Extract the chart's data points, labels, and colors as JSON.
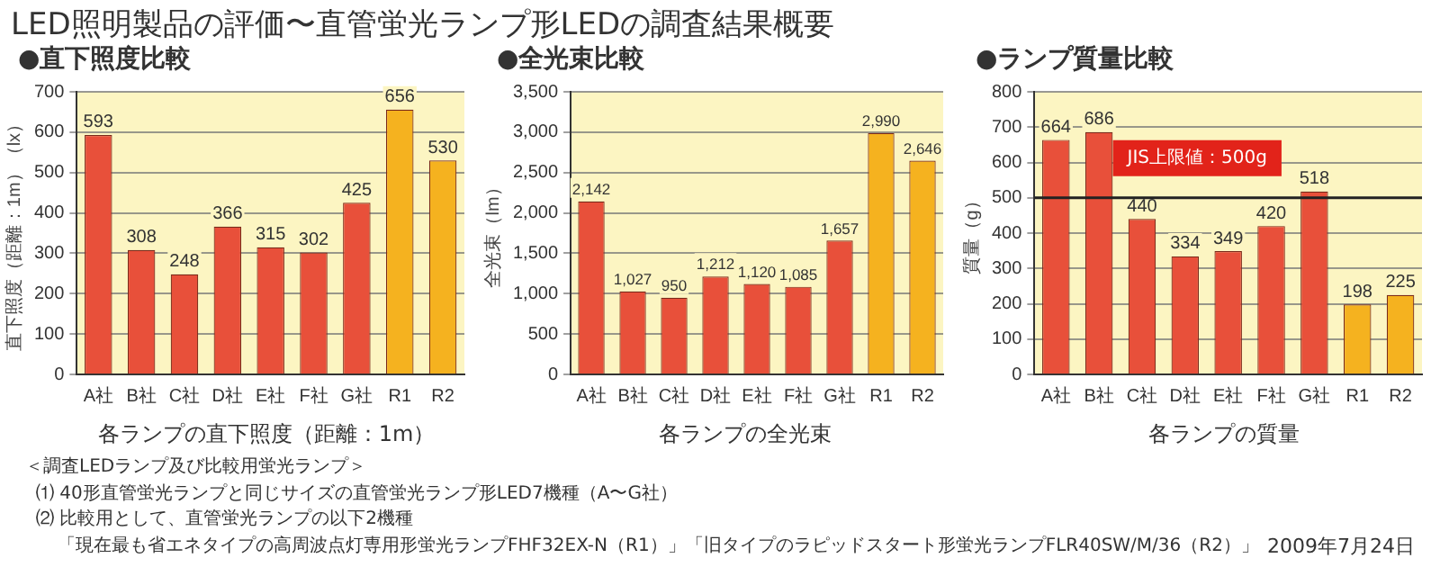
{
  "chart_data": [
    {
      "type": "bar",
      "title": "LED照明製品の評価〜直管蛍光ランプ形LEDの調査結果概要",
      "subtitle": "●直下照度比較",
      "xlabel": "各ランプの直下照度（距離：1m）",
      "ylabel": "直下照度（距離：1m）（lx）",
      "categories": [
        "A社",
        "B社",
        "C社",
        "D社",
        "E社",
        "F社",
        "G社",
        "R1",
        "R2"
      ],
      "values": [
        593,
        308,
        248,
        366,
        315,
        302,
        425,
        656,
        530
      ],
      "colors": [
        "#e8503a",
        "#e8503a",
        "#e8503a",
        "#e8503a",
        "#e8503a",
        "#e8503a",
        "#e8503a",
        "#f5b21f",
        "#f5b21f"
      ],
      "ylim": [
        0,
        700
      ],
      "yticks": [
        0,
        100,
        200,
        300,
        400,
        500,
        600,
        700
      ],
      "grid": "y",
      "data_labels": true,
      "annotations": [
        "＜調査LEDランプ及び比較用蛍光ランプ＞",
        "⑴ 40形直管蛍光ランプと同じサイズの直管蛍光ランプ形LED7機種（A〜G社）",
        "⑵ 比較用として、直管蛍光ランプの以下2機種",
        "「現在最も省エネタイプの高周波点灯専用形蛍光ランプFHF32EX-N（R1）」「旧タイプのラピッドスタート形蛍光ランプFLR40SW/M/36（R2）」",
        "2009年7月24日"
      ]
    },
    {
      "type": "bar",
      "title": "●全光束比較",
      "xlabel": "各ランプの全光束",
      "ylabel": "全光束（lm）",
      "categories": [
        "A社",
        "B社",
        "C社",
        "D社",
        "E社",
        "F社",
        "G社",
        "R1",
        "R2"
      ],
      "values": [
        2142,
        1027,
        950,
        1212,
        1120,
        1085,
        1657,
        2990,
        2646
      ],
      "value_labels": [
        "2,142",
        "1,027",
        "950",
        "1,212",
        "1,120",
        "1,085",
        "1,657",
        "2,990",
        "2,646"
      ],
      "colors": [
        "#e8503a",
        "#e8503a",
        "#e8503a",
        "#e8503a",
        "#e8503a",
        "#e8503a",
        "#e8503a",
        "#f5b21f",
        "#f5b21f"
      ],
      "ylim": [
        0,
        3500
      ],
      "yticks": [
        0,
        {
          "value": 500,
          "label": "500"
        },
        {
          "value": 1000,
          "label": "1,000"
        },
        {
          "value": 1500,
          "label": "1,500"
        },
        {
          "value": 2000,
          "label": "2,000"
        },
        {
          "value": 2500,
          "label": "2,500"
        },
        {
          "value": 3000,
          "label": "3,000"
        },
        {
          "value": 3500,
          "label": "3,500"
        }
      ],
      "grid": "y"
    },
    {
      "type": "bar",
      "title": "●ランプ質量比較",
      "xlabel": "各ランプの質量",
      "ylabel": "質量（g）",
      "categories": [
        "A社",
        "B社",
        "C社",
        "D社",
        "E社",
        "F社",
        "G社",
        "R1",
        "R2"
      ],
      "values": [
        664,
        686,
        440,
        334,
        349,
        420,
        518,
        198,
        225
      ],
      "colors": [
        "#e8503a",
        "#e8503a",
        "#e8503a",
        "#e8503a",
        "#e8503a",
        "#e8503a",
        "#e8503a",
        "#f5b21f",
        "#f5b21f"
      ],
      "ylim": [
        0,
        800
      ],
      "yticks": [
        0,
        100,
        200,
        300,
        400,
        500,
        600,
        700,
        800
      ],
      "grid": "y",
      "data_labels": true,
      "ref_lines": [
        {
          "axis": "y",
          "value": 500,
          "label": "JIS上限値：500g",
          "color": "#222222"
        }
      ]
    }
  ]
}
